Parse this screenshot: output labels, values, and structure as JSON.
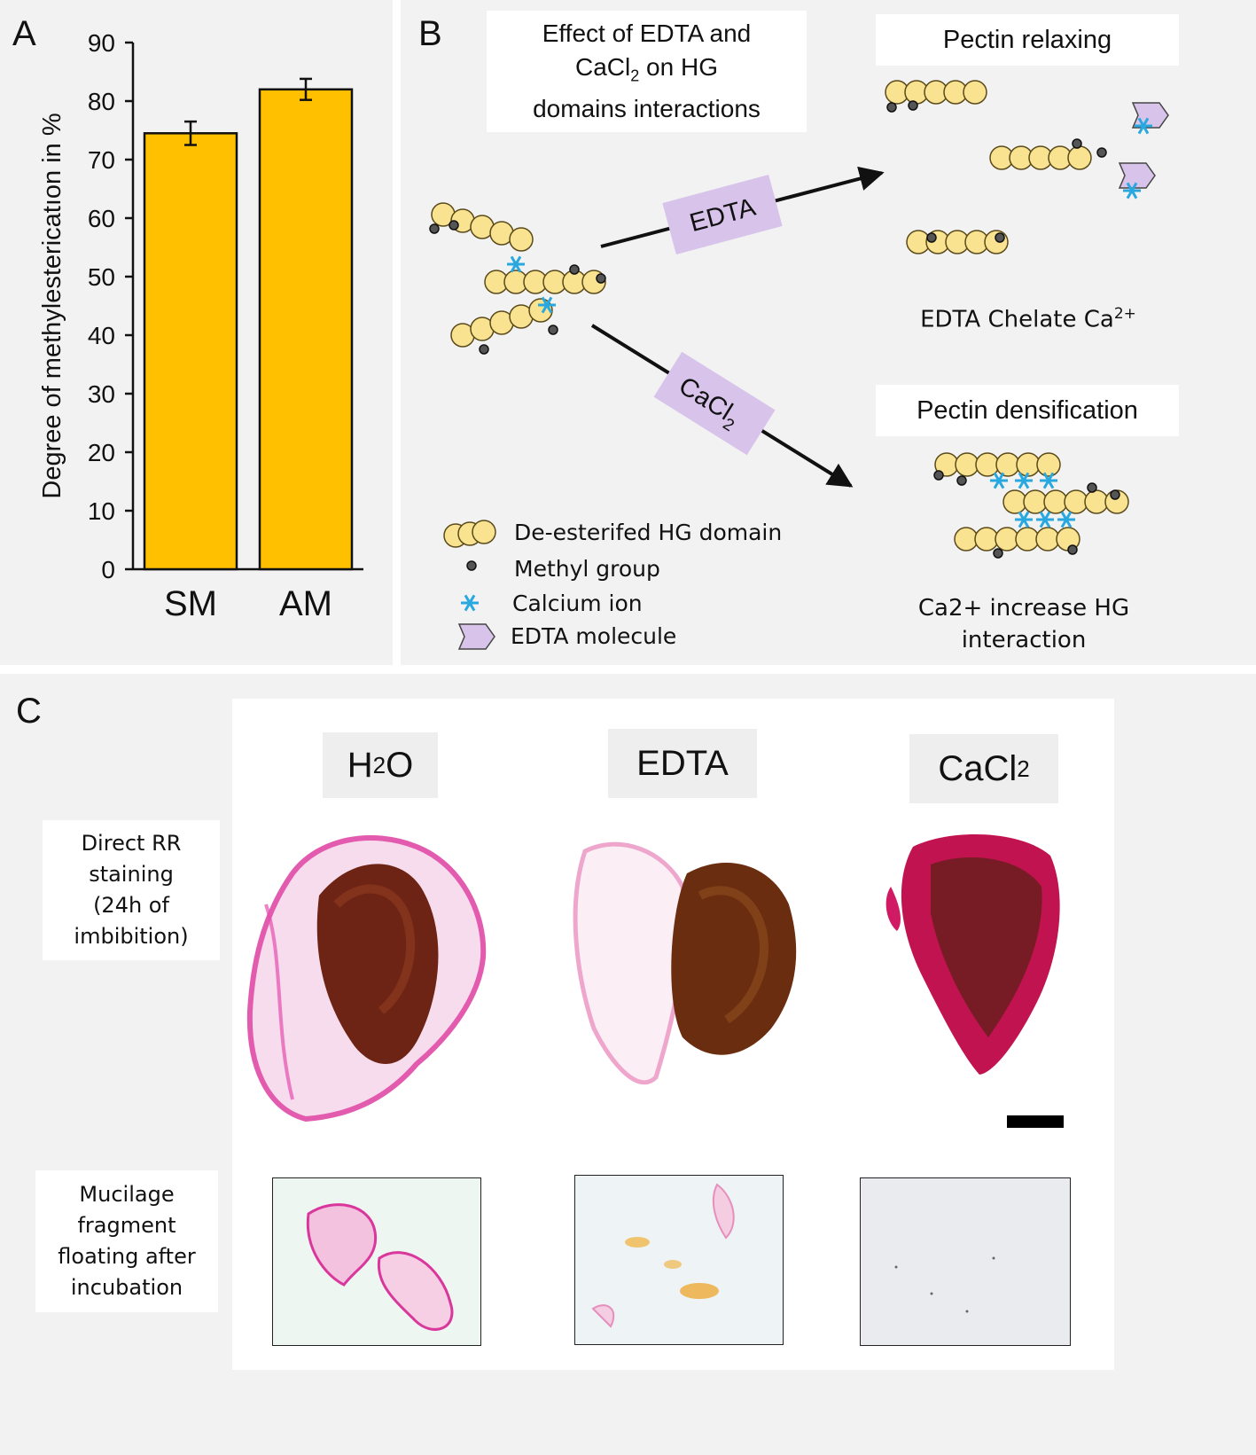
{
  "panel_a": {
    "label": "A",
    "chart_data": {
      "type": "bar",
      "categories": [
        "SM",
        "AM"
      ],
      "values": [
        74.5,
        82
      ],
      "errors": [
        2,
        1.8
      ],
      "ylabel": "Degree of methylestericatıon in %",
      "ylim": [
        0,
        90
      ],
      "yticks": [
        0,
        10,
        20,
        30,
        40,
        50,
        60,
        70,
        80,
        90
      ],
      "bar_color": "#ffc000",
      "grid": false
    }
  },
  "panel_b": {
    "label": "B",
    "title_lines": [
      "Effect of EDTA and",
      "CaCl",
      "2",
      " on HG",
      "domains interactions"
    ],
    "relax_title": "Pectin relaxing",
    "dens_title": "Pectin densification",
    "edta_arrow_label": "EDTA",
    "cacl_arrow_label": "CaCl",
    "cacl_arrow_sub": "2",
    "relax_caption": "EDTA Chelate Ca",
    "relax_caption_sup": "2+",
    "dens_caption_1": "Ca2+ increase HG",
    "dens_caption_2": "interaction",
    "legend": {
      "hg": "De-esterifed HG domain",
      "methyl": "Methyl group",
      "calcium": "Calcium ion",
      "edta": "EDTA molecule"
    },
    "colors": {
      "bead": "#f9e290",
      "bead_stroke": "#5a4a1a",
      "calcium": "#29a8e0",
      "edta": "#d8c3ea"
    }
  },
  "panel_c": {
    "label": "C",
    "treatments": [
      {
        "main": "H",
        "sub": "2",
        "tail": "O"
      },
      {
        "main": "EDTA",
        "sub": "",
        "tail": ""
      },
      {
        "main": "CaCl",
        "sub": "2",
        "tail": ""
      }
    ],
    "row1_label": [
      "Direct RR",
      "staining",
      "(24h of",
      "imbibition)"
    ],
    "row2_label": [
      "Mucilage",
      "fragment",
      "floating after",
      "incubation"
    ]
  }
}
